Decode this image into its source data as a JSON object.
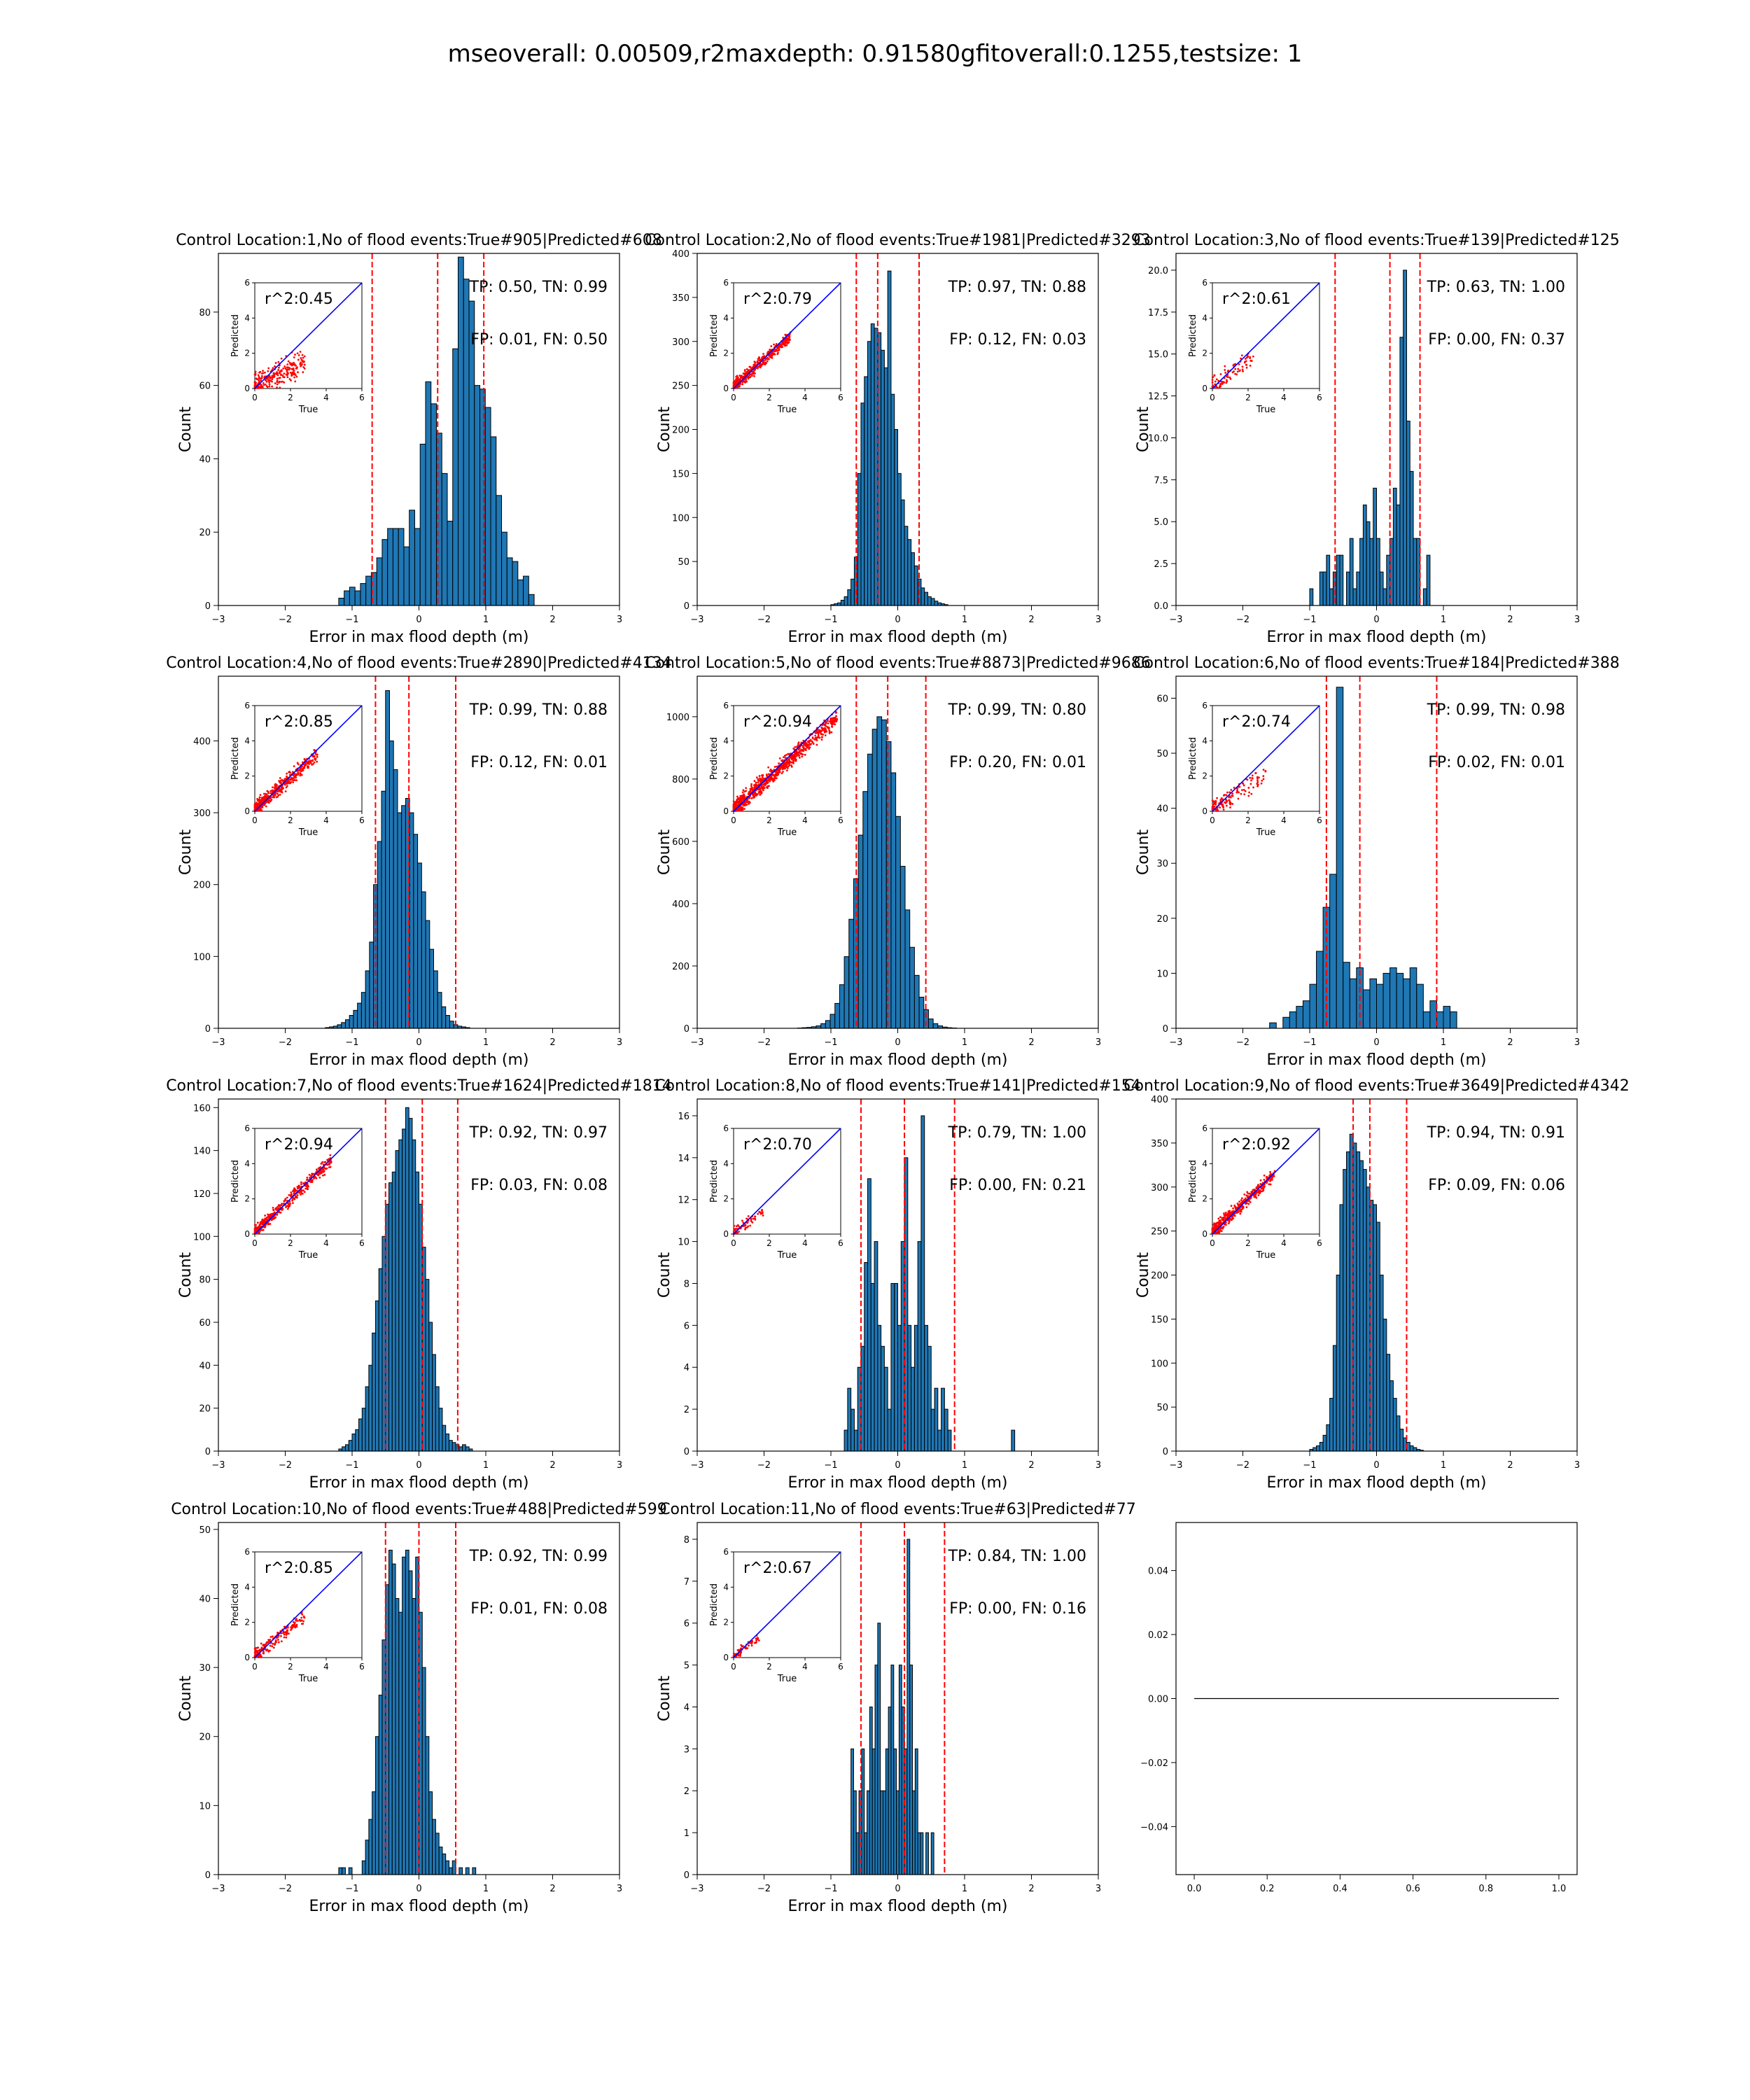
{
  "title": "mseoverall: 0.00509,r2maxdepth: 0.91580gfitoverall:0.1255,testsize: 1",
  "colors": {
    "bar": "#1f77b4",
    "edge": "#000000",
    "vline": "#ff0000",
    "scatter": "#ff0000",
    "diag": "#0000ff"
  },
  "chart_data": [
    {
      "type": "bar",
      "title": "Control Location:1,No of flood events:True#905|Predicted#608",
      "xlabel": "Error in max flood depth (m)",
      "ylabel": "Count",
      "xlim": [
        -3,
        3
      ],
      "ylim": [
        0,
        96
      ],
      "yticks": [
        0,
        20,
        40,
        60,
        80
      ],
      "vlines": [
        -0.7,
        0.28,
        0.97
      ],
      "bin_start": -1.2,
      "bin_width": 0.0812,
      "values": [
        2,
        4,
        5,
        4,
        6,
        8,
        9,
        13,
        18,
        21,
        21,
        21,
        16,
        26,
        21,
        44,
        61,
        55,
        47,
        36,
        23,
        70,
        95,
        89,
        83,
        60,
        59,
        54,
        46,
        30,
        20,
        13,
        12,
        7,
        8,
        3
      ],
      "inset": {
        "r2": "r^2:0.45",
        "xlabel": "True",
        "ylabel": "Predicted",
        "xlim": [
          0,
          6
        ],
        "ylim": [
          0,
          6
        ],
        "ticks": [
          0,
          2,
          4,
          6
        ],
        "cloud": {
          "xmax": 2.8,
          "spread": 0.7,
          "n": 260,
          "slope": 0.5
        }
      },
      "metrics": {
        "line1": "TP: 0.50, TN: 0.99",
        "line2": "FP: 0.01, FN: 0.50"
      }
    },
    {
      "type": "bar",
      "title": "Control Location:2,No of flood events:True#1981|Predicted#3293",
      "xlabel": "Error in max flood depth (m)",
      "ylabel": "Count",
      "xlim": [
        -3,
        3
      ],
      "ylim": [
        0,
        400
      ],
      "yticks": [
        0,
        50,
        100,
        150,
        200,
        250,
        300,
        350,
        400
      ],
      "vlines": [
        -0.62,
        -0.3,
        0.32
      ],
      "bin_start": -1.0,
      "bin_width": 0.05,
      "values": [
        1,
        2,
        3,
        6,
        10,
        18,
        30,
        55,
        150,
        230,
        260,
        300,
        320,
        315,
        310,
        290,
        270,
        380,
        240,
        200,
        150,
        120,
        90,
        75,
        60,
        45,
        30,
        20,
        15,
        10,
        8,
        5,
        3,
        2,
        1
      ],
      "inset": {
        "r2": "r^2:0.79",
        "xlabel": "True",
        "ylabel": "Predicted",
        "xlim": [
          0,
          6
        ],
        "ylim": [
          0,
          6
        ],
        "ticks": [
          0,
          2,
          4,
          6
        ],
        "cloud": {
          "xmax": 3.2,
          "spread": 0.35,
          "n": 450,
          "slope": 0.9
        }
      },
      "metrics": {
        "line1": "TP: 0.97, TN: 0.88",
        "line2": "FP: 0.12, FN: 0.03"
      }
    },
    {
      "type": "bar",
      "title": "Control Location:3,No of flood events:True#139|Predicted#125",
      "xlabel": "Error in max flood depth (m)",
      "ylabel": "Count",
      "xlim": [
        -3,
        3
      ],
      "ylim": [
        0,
        21
      ],
      "yticks": [
        0.0,
        2.5,
        5.0,
        7.5,
        10.0,
        12.5,
        15.0,
        17.5,
        20.0
      ],
      "vlines": [
        -0.62,
        0.2,
        0.65
      ],
      "bin_start": -1.0,
      "bin_width": 0.05,
      "values": [
        1,
        0,
        0,
        2,
        2,
        3,
        1,
        2,
        3,
        3,
        0,
        2,
        4,
        1,
        2,
        4,
        6,
        5,
        4,
        7,
        4,
        2,
        1,
        3,
        4,
        7,
        6,
        16,
        20,
        11,
        8,
        4,
        4,
        0,
        1,
        3
      ],
      "inset": {
        "r2": "r^2:0.61",
        "xlabel": "True",
        "ylabel": "Predicted",
        "xlim": [
          0,
          6
        ],
        "ylim": [
          0,
          6
        ],
        "ticks": [
          0,
          2,
          4,
          6
        ],
        "cloud": {
          "xmax": 2.3,
          "spread": 0.5,
          "n": 90,
          "slope": 0.75
        }
      },
      "metrics": {
        "line1": "TP: 0.63, TN: 1.00",
        "line2": "FP: 0.00, FN: 0.37"
      }
    },
    {
      "type": "bar",
      "title": "Control Location:4,No of flood events:True#2890|Predicted#4134",
      "xlabel": "Error in max flood depth (m)",
      "ylabel": "Count",
      "xlim": [
        -3,
        3
      ],
      "ylim": [
        0,
        490
      ],
      "yticks": [
        0,
        100,
        200,
        300,
        400
      ],
      "vlines": [
        -0.65,
        -0.15,
        0.55
      ],
      "bin_start": -1.4,
      "bin_width": 0.06,
      "values": [
        1,
        2,
        3,
        5,
        8,
        12,
        18,
        25,
        35,
        50,
        80,
        120,
        200,
        260,
        330,
        470,
        400,
        360,
        300,
        310,
        320,
        300,
        270,
        230,
        190,
        150,
        110,
        80,
        50,
        30,
        18,
        10,
        5,
        3,
        2,
        1
      ],
      "inset": {
        "r2": "r^2:0.85",
        "xlabel": "True",
        "ylabel": "Predicted",
        "xlim": [
          0,
          6
        ],
        "ylim": [
          0,
          6
        ],
        "ticks": [
          0,
          2,
          4,
          6
        ],
        "cloud": {
          "xmax": 3.5,
          "spread": 0.4,
          "n": 500,
          "slope": 0.9
        }
      },
      "metrics": {
        "line1": "TP: 0.99, TN: 0.88",
        "line2": "FP: 0.12, FN: 0.01"
      }
    },
    {
      "type": "bar",
      "title": "Control Location:5,No of flood events:True#8873|Predicted#9686",
      "xlabel": "Error in max flood depth (m)",
      "ylabel": "Count",
      "xlim": [
        -3,
        3
      ],
      "ylim": [
        0,
        1130
      ],
      "yticks": [
        0,
        200,
        400,
        600,
        800,
        1000
      ],
      "vlines": [
        -0.62,
        -0.15,
        0.42
      ],
      "bin_start": -1.5,
      "bin_width": 0.07,
      "values": [
        1,
        2,
        3,
        5,
        8,
        15,
        25,
        45,
        80,
        140,
        230,
        350,
        480,
        620,
        760,
        880,
        960,
        1000,
        990,
        920,
        820,
        680,
        520,
        380,
        260,
        170,
        100,
        60,
        30,
        15,
        8,
        4,
        2,
        1
      ],
      "inset": {
        "r2": "r^2:0.94",
        "xlabel": "True",
        "ylabel": "Predicted",
        "xlim": [
          0,
          6
        ],
        "ylim": [
          0,
          6
        ],
        "ticks": [
          0,
          2,
          4,
          6
        ],
        "cloud": {
          "xmax": 5.8,
          "spread": 0.45,
          "n": 900,
          "slope": 0.9
        }
      },
      "metrics": {
        "line1": "TP: 0.99, TN: 0.80",
        "line2": "FP: 0.20, FN: 0.01"
      }
    },
    {
      "type": "bar",
      "title": "Control Location:6,No of flood events:True#184|Predicted#388",
      "xlabel": "Error in max flood depth (m)",
      "ylabel": "Count",
      "xlim": [
        -3,
        3
      ],
      "ylim": [
        0,
        64
      ],
      "yticks": [
        0,
        10,
        20,
        30,
        40,
        50,
        60
      ],
      "vlines": [
        -0.75,
        -0.25,
        0.9
      ],
      "bin_start": -1.6,
      "bin_width": 0.1,
      "values": [
        1,
        0,
        2,
        3,
        4,
        5,
        8,
        14,
        22,
        28,
        62,
        12,
        9,
        11,
        7,
        9,
        8,
        10,
        11,
        10,
        9,
        11,
        8,
        3,
        5,
        3,
        4,
        3
      ],
      "inset": {
        "r2": "r^2:0.74",
        "xlabel": "True",
        "ylabel": "Predicted",
        "xlim": [
          0,
          6
        ],
        "ylim": [
          0,
          6
        ],
        "ticks": [
          0,
          2,
          4,
          6
        ],
        "cloud": {
          "xmax": 3.0,
          "spread": 0.5,
          "n": 130,
          "slope": 0.65
        }
      },
      "metrics": {
        "line1": "TP: 0.99, TN: 0.98",
        "line2": "FP: 0.02, FN: 0.01"
      }
    },
    {
      "type": "bar",
      "title": "Control Location:7,No of flood events:True#1624|Predicted#1814",
      "xlabel": "Error in max flood depth (m)",
      "ylabel": "Count",
      "xlim": [
        -3,
        3
      ],
      "ylim": [
        0,
        164
      ],
      "yticks": [
        0,
        20,
        40,
        60,
        80,
        100,
        120,
        140,
        160
      ],
      "vlines": [
        -0.5,
        0.05,
        0.58
      ],
      "bin_start": -1.2,
      "bin_width": 0.05,
      "values": [
        1,
        2,
        3,
        5,
        8,
        10,
        15,
        20,
        30,
        40,
        55,
        70,
        85,
        100,
        115,
        125,
        130,
        140,
        145,
        150,
        160,
        155,
        145,
        130,
        115,
        95,
        80,
        60,
        45,
        30,
        20,
        12,
        8,
        5,
        4,
        3,
        2,
        3,
        2,
        1
      ],
      "inset": {
        "r2": "r^2:0.94",
        "xlabel": "True",
        "ylabel": "Predicted",
        "xlim": [
          0,
          6
        ],
        "ylim": [
          0,
          6
        ],
        "ticks": [
          0,
          2,
          4,
          6
        ],
        "cloud": {
          "xmax": 4.3,
          "spread": 0.35,
          "n": 450,
          "slope": 0.95
        }
      },
      "metrics": {
        "line1": "TP: 0.92, TN: 0.97",
        "line2": "FP: 0.03, FN: 0.08"
      }
    },
    {
      "type": "bar",
      "title": "Control Location:8,No of flood events:True#141|Predicted#154",
      "xlabel": "Error in max flood depth (m)",
      "ylabel": "Count",
      "xlim": [
        -3,
        3
      ],
      "ylim": [
        0,
        16.8
      ],
      "yticks": [
        0,
        2,
        4,
        6,
        8,
        10,
        12,
        14,
        16
      ],
      "vlines": [
        -0.55,
        0.1,
        0.85
      ],
      "bin_start": -0.8,
      "bin_width": 0.05,
      "values": [
        1,
        3,
        2,
        1,
        4,
        5,
        9,
        13,
        8,
        10,
        6,
        5,
        4,
        2,
        8,
        8,
        6,
        10,
        14,
        6,
        4,
        6,
        10,
        16,
        6,
        5,
        2,
        3,
        1,
        3,
        2,
        1,
        0,
        0,
        0,
        0,
        0,
        0,
        0,
        0,
        0,
        0,
        0,
        0,
        0,
        0,
        0,
        0,
        0,
        0,
        1
      ],
      "inset": {
        "r2": "r^2:0.70",
        "xlabel": "True",
        "ylabel": "Predicted",
        "xlim": [
          0,
          6
        ],
        "ylim": [
          0,
          6
        ],
        "ticks": [
          0,
          2,
          4,
          6
        ],
        "cloud": {
          "xmax": 1.8,
          "spread": 0.3,
          "n": 70,
          "slope": 0.7
        }
      },
      "metrics": {
        "line1": "TP: 0.79, TN: 1.00",
        "line2": "FP: 0.00, FN: 0.21"
      }
    },
    {
      "type": "bar",
      "title": "Control Location:9,No of flood events:True#3649|Predicted#4342",
      "xlabel": "Error in max flood depth (m)",
      "ylabel": "Count",
      "xlim": [
        -3,
        3
      ],
      "ylim": [
        0,
        400
      ],
      "yticks": [
        0,
        50,
        100,
        150,
        200,
        250,
        300,
        350,
        400
      ],
      "vlines": [
        -0.35,
        -0.1,
        0.45
      ],
      "bin_start": -1.0,
      "bin_width": 0.05,
      "values": [
        2,
        4,
        6,
        10,
        18,
        30,
        60,
        120,
        200,
        280,
        320,
        340,
        360,
        350,
        340,
        330,
        320,
        300,
        285,
        280,
        260,
        200,
        150,
        110,
        80,
        60,
        40,
        25,
        15,
        10,
        6,
        4,
        2,
        1
      ],
      "inset": {
        "r2": "r^2:0.92",
        "xlabel": "True",
        "ylabel": "Predicted",
        "xlim": [
          0,
          6
        ],
        "ylim": [
          0,
          6
        ],
        "ticks": [
          0,
          2,
          4,
          6
        ],
        "cloud": {
          "xmax": 3.5,
          "spread": 0.35,
          "n": 500,
          "slope": 0.95
        }
      },
      "metrics": {
        "line1": "TP: 0.94, TN: 0.91",
        "line2": "FP: 0.09, FN: 0.06"
      }
    },
    {
      "type": "bar",
      "title": "Control Location:10,No of flood events:True#488|Predicted#599",
      "xlabel": "Error in max flood depth (m)",
      "ylabel": "Count",
      "xlim": [
        -3,
        3
      ],
      "ylim": [
        0,
        51
      ],
      "yticks": [
        0,
        10,
        20,
        30,
        40,
        50
      ],
      "vlines": [
        -0.5,
        0.0,
        0.55
      ],
      "bin_start": -1.2,
      "bin_width": 0.05,
      "values": [
        1,
        1,
        0,
        1,
        0,
        0,
        0,
        2,
        5,
        8,
        12,
        20,
        26,
        34,
        42,
        47,
        45,
        40,
        38,
        46,
        47,
        44,
        40,
        46,
        38,
        30,
        20,
        12,
        8,
        6,
        4,
        3,
        2,
        1,
        2,
        0,
        1,
        0,
        1,
        0,
        1
      ],
      "inset": {
        "r2": "r^2:0.85",
        "xlabel": "True",
        "ylabel": "Predicted",
        "xlim": [
          0,
          6
        ],
        "ylim": [
          0,
          6
        ],
        "ticks": [
          0,
          2,
          4,
          6
        ],
        "cloud": {
          "xmax": 2.8,
          "spread": 0.4,
          "n": 200,
          "slope": 0.8
        }
      },
      "metrics": {
        "line1": "TP: 0.92, TN: 0.99",
        "line2": "FP: 0.01, FN: 0.08"
      }
    },
    {
      "type": "bar",
      "title": "Control Location:11,No of flood events:True#63|Predicted#77",
      "xlabel": "Error in max flood depth (m)",
      "ylabel": "Count",
      "xlim": [
        -3,
        3
      ],
      "ylim": [
        0,
        8.4
      ],
      "yticks": [
        0,
        1,
        2,
        3,
        4,
        5,
        6,
        7,
        8
      ],
      "vlines": [
        -0.55,
        0.1,
        0.7
      ],
      "bin_start": -0.7,
      "bin_width": 0.04,
      "values": [
        3,
        2,
        1,
        2,
        3,
        1,
        2,
        4,
        3,
        5,
        6,
        2,
        2,
        3,
        4,
        5,
        3,
        2,
        5,
        4,
        3,
        8,
        5,
        2,
        3,
        1,
        1,
        0,
        1,
        0,
        1
      ],
      "inset": {
        "r2": "r^2:0.67",
        "xlabel": "True",
        "ylabel": "Predicted",
        "xlim": [
          0,
          6
        ],
        "ylim": [
          0,
          6
        ],
        "ticks": [
          0,
          2,
          4,
          6
        ],
        "cloud": {
          "xmax": 1.5,
          "spread": 0.25,
          "n": 60,
          "slope": 0.7
        }
      },
      "metrics": {
        "line1": "TP: 0.84, TN: 1.00",
        "line2": "FP: 0.00, FN: 0.16"
      }
    },
    {
      "type": "line",
      "title": "",
      "xlim": [
        -0.05,
        1.05
      ],
      "ylim": [
        -0.055,
        0.055
      ],
      "xticks": [
        "0.0",
        "0.2",
        "0.4",
        "0.6",
        "0.8",
        "1.0"
      ],
      "yticks": [
        "−0.04",
        "−0.02",
        "0.00",
        "0.02",
        "0.04"
      ],
      "x": [
        0,
        1
      ],
      "y": [
        0,
        0
      ]
    }
  ]
}
